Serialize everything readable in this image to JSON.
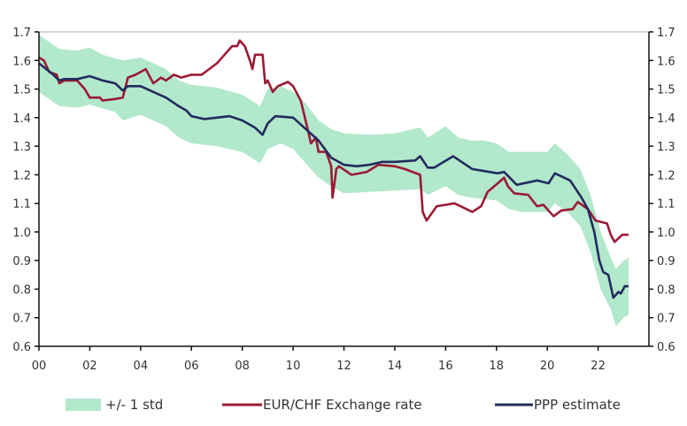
{
  "chart_data": {
    "type": "line",
    "title": "",
    "xlabel": "",
    "ylabel": "",
    "ylim": [
      0.6,
      1.7
    ],
    "xlim": [
      2000,
      2024
    ],
    "grid": false,
    "legend_position": "bottom",
    "y_ticks": [
      "0.6",
      "0.7",
      "0.8",
      "0.9",
      "1.0",
      "1.1",
      "1.2",
      "1.3",
      "1.4",
      "1.5",
      "1.6",
      "1.7"
    ],
    "x_ticks": [
      "00",
      "02",
      "04",
      "06",
      "08",
      "10",
      "12",
      "14",
      "16",
      "18",
      "20",
      "22"
    ],
    "colors": {
      "band": "#b2e8cb",
      "exchange": "#9b1b35",
      "ppp": "#232b5e"
    },
    "band": {
      "name": "+/- 1 std",
      "upper": [
        [
          2000,
          1.69
        ],
        [
          2000.8,
          1.64
        ],
        [
          2001.5,
          1.635
        ],
        [
          2002,
          1.645
        ],
        [
          2002.5,
          1.62
        ],
        [
          2003.3,
          1.6
        ],
        [
          2004,
          1.61
        ],
        [
          2004.5,
          1.59
        ],
        [
          2005,
          1.57
        ],
        [
          2005.5,
          1.53
        ],
        [
          2006,
          1.515
        ],
        [
          2007,
          1.505
        ],
        [
          2008,
          1.48
        ],
        [
          2008.7,
          1.44
        ],
        [
          2009,
          1.5
        ],
        [
          2009.5,
          1.51
        ],
        [
          2010,
          1.49
        ],
        [
          2010.5,
          1.45
        ],
        [
          2011,
          1.39
        ],
        [
          2011.5,
          1.36
        ],
        [
          2012,
          1.345
        ],
        [
          2013,
          1.34
        ],
        [
          2014,
          1.345
        ],
        [
          2015,
          1.365
        ],
        [
          2015.3,
          1.33
        ],
        [
          2016,
          1.37
        ],
        [
          2016.5,
          1.33
        ],
        [
          2017,
          1.32
        ],
        [
          2017.5,
          1.32
        ],
        [
          2018,
          1.31
        ],
        [
          2018.5,
          1.28
        ],
        [
          2019,
          1.28
        ],
        [
          2020,
          1.28
        ],
        [
          2020.3,
          1.31
        ],
        [
          2020.8,
          1.27
        ],
        [
          2021.3,
          1.22
        ],
        [
          2021.7,
          1.13
        ],
        [
          2022.1,
          1.0
        ],
        [
          2022.5,
          0.91
        ],
        [
          2022.7,
          0.87
        ],
        [
          2023.0,
          0.9
        ],
        [
          2023.2,
          0.91
        ]
      ],
      "lower": [
        [
          2000,
          1.49
        ],
        [
          2000.8,
          1.44
        ],
        [
          2001.5,
          1.435
        ],
        [
          2002,
          1.445
        ],
        [
          2003,
          1.42
        ],
        [
          2003.3,
          1.39
        ],
        [
          2004,
          1.41
        ],
        [
          2004.5,
          1.39
        ],
        [
          2005,
          1.37
        ],
        [
          2005.5,
          1.33
        ],
        [
          2006,
          1.31
        ],
        [
          2007,
          1.3
        ],
        [
          2008,
          1.28
        ],
        [
          2008.7,
          1.24
        ],
        [
          2009,
          1.29
        ],
        [
          2009.5,
          1.31
        ],
        [
          2010,
          1.29
        ],
        [
          2010.5,
          1.24
        ],
        [
          2011,
          1.19
        ],
        [
          2011.5,
          1.16
        ],
        [
          2012,
          1.135
        ],
        [
          2013,
          1.14
        ],
        [
          2014,
          1.145
        ],
        [
          2015,
          1.15
        ],
        [
          2015.3,
          1.13
        ],
        [
          2016,
          1.16
        ],
        [
          2016.5,
          1.13
        ],
        [
          2017,
          1.12
        ],
        [
          2018,
          1.11
        ],
        [
          2018.5,
          1.08
        ],
        [
          2019,
          1.07
        ],
        [
          2020,
          1.07
        ],
        [
          2020.3,
          1.1
        ],
        [
          2020.8,
          1.07
        ],
        [
          2021.3,
          1.02
        ],
        [
          2021.7,
          0.93
        ],
        [
          2022.1,
          0.8
        ],
        [
          2022.5,
          0.73
        ],
        [
          2022.7,
          0.67
        ],
        [
          2023.0,
          0.7
        ],
        [
          2023.2,
          0.71
        ]
      ]
    },
    "series": [
      {
        "name": "EUR/CHF Exchange rate",
        "points": [
          [
            2000,
            1.61
          ],
          [
            2000.2,
            1.6
          ],
          [
            2000.4,
            1.56
          ],
          [
            2000.7,
            1.55
          ],
          [
            2000.8,
            1.52
          ],
          [
            2001,
            1.53
          ],
          [
            2001.5,
            1.53
          ],
          [
            2001.8,
            1.5
          ],
          [
            2002,
            1.47
          ],
          [
            2002.4,
            1.47
          ],
          [
            2002.5,
            1.46
          ],
          [
            2003,
            1.465
          ],
          [
            2003.3,
            1.47
          ],
          [
            2003.5,
            1.54
          ],
          [
            2003.8,
            1.55
          ],
          [
            2004,
            1.56
          ],
          [
            2004.2,
            1.57
          ],
          [
            2004.5,
            1.52
          ],
          [
            2004.8,
            1.54
          ],
          [
            2005,
            1.53
          ],
          [
            2005.3,
            1.55
          ],
          [
            2005.6,
            1.54
          ],
          [
            2006,
            1.55
          ],
          [
            2006.4,
            1.55
          ],
          [
            2006.7,
            1.57
          ],
          [
            2007,
            1.59
          ],
          [
            2007.3,
            1.62
          ],
          [
            2007.6,
            1.65
          ],
          [
            2007.8,
            1.65
          ],
          [
            2007.9,
            1.67
          ],
          [
            2008.1,
            1.65
          ],
          [
            2008.3,
            1.6
          ],
          [
            2008.4,
            1.57
          ],
          [
            2008.5,
            1.62
          ],
          [
            2008.8,
            1.62
          ],
          [
            2008.9,
            1.52
          ],
          [
            2009,
            1.53
          ],
          [
            2009.2,
            1.49
          ],
          [
            2009.4,
            1.51
          ],
          [
            2009.8,
            1.525
          ],
          [
            2010,
            1.51
          ],
          [
            2010.3,
            1.46
          ],
          [
            2010.6,
            1.35
          ],
          [
            2010.7,
            1.31
          ],
          [
            2010.9,
            1.33
          ],
          [
            2011,
            1.28
          ],
          [
            2011.3,
            1.28
          ],
          [
            2011.5,
            1.23
          ],
          [
            2011.55,
            1.12
          ],
          [
            2011.7,
            1.22
          ],
          [
            2011.8,
            1.23
          ],
          [
            2012.3,
            1.2
          ],
          [
            2012.9,
            1.21
          ],
          [
            2013.35,
            1.235
          ],
          [
            2014,
            1.23
          ],
          [
            2014.4,
            1.22
          ],
          [
            2015.0,
            1.2
          ],
          [
            2015.1,
            1.07
          ],
          [
            2015.25,
            1.04
          ],
          [
            2015.65,
            1.09
          ],
          [
            2016.35,
            1.1
          ],
          [
            2017.05,
            1.07
          ],
          [
            2017.4,
            1.09
          ],
          [
            2017.65,
            1.14
          ],
          [
            2018.05,
            1.17
          ],
          [
            2018.3,
            1.19
          ],
          [
            2018.45,
            1.16
          ],
          [
            2018.7,
            1.135
          ],
          [
            2019.25,
            1.13
          ],
          [
            2019.6,
            1.09
          ],
          [
            2019.85,
            1.095
          ],
          [
            2020.25,
            1.055
          ],
          [
            2020.55,
            1.075
          ],
          [
            2021.0,
            1.08
          ],
          [
            2021.2,
            1.105
          ],
          [
            2021.6,
            1.08
          ],
          [
            2021.9,
            1.04
          ],
          [
            2022.35,
            1.03
          ],
          [
            2022.5,
            0.99
          ],
          [
            2022.65,
            0.965
          ],
          [
            2022.95,
            0.99
          ],
          [
            2023.2,
            0.99
          ]
        ]
      },
      {
        "name": "PPP estimate",
        "points": [
          [
            2000,
            1.59
          ],
          [
            2000.5,
            1.555
          ],
          [
            2000.8,
            1.53
          ],
          [
            2001,
            1.535
          ],
          [
            2001.5,
            1.535
          ],
          [
            2002,
            1.545
          ],
          [
            2002.5,
            1.53
          ],
          [
            2003,
            1.52
          ],
          [
            2003.3,
            1.495
          ],
          [
            2003.5,
            1.51
          ],
          [
            2004,
            1.51
          ],
          [
            2004.5,
            1.49
          ],
          [
            2005,
            1.47
          ],
          [
            2005.5,
            1.44
          ],
          [
            2005.8,
            1.425
          ],
          [
            2006,
            1.405
          ],
          [
            2006.5,
            1.395
          ],
          [
            2007,
            1.4
          ],
          [
            2007.5,
            1.405
          ],
          [
            2008,
            1.39
          ],
          [
            2008.5,
            1.365
          ],
          [
            2008.8,
            1.34
          ],
          [
            2009,
            1.38
          ],
          [
            2009.3,
            1.405
          ],
          [
            2010,
            1.4
          ],
          [
            2010.5,
            1.36
          ],
          [
            2011,
            1.32
          ],
          [
            2011.5,
            1.26
          ],
          [
            2012,
            1.235
          ],
          [
            2012.5,
            1.23
          ],
          [
            2013,
            1.235
          ],
          [
            2013.5,
            1.245
          ],
          [
            2014,
            1.245
          ],
          [
            2014.8,
            1.25
          ],
          [
            2015.0,
            1.265
          ],
          [
            2015.3,
            1.225
          ],
          [
            2015.55,
            1.225
          ],
          [
            2016.3,
            1.265
          ],
          [
            2017.05,
            1.22
          ],
          [
            2018.05,
            1.205
          ],
          [
            2018.3,
            1.21
          ],
          [
            2018.8,
            1.165
          ],
          [
            2019.6,
            1.18
          ],
          [
            2020.05,
            1.17
          ],
          [
            2020.3,
            1.205
          ],
          [
            2020.9,
            1.18
          ],
          [
            2021.35,
            1.12
          ],
          [
            2021.6,
            1.08
          ],
          [
            2021.85,
            1.0
          ],
          [
            2022.05,
            0.9
          ],
          [
            2022.2,
            0.86
          ],
          [
            2022.4,
            0.85
          ],
          [
            2022.6,
            0.77
          ],
          [
            2022.8,
            0.79
          ],
          [
            2022.9,
            0.785
          ],
          [
            2023.05,
            0.81
          ],
          [
            2023.2,
            0.81
          ]
        ]
      }
    ],
    "legend": [
      "+/- 1 std",
      "EUR/CHF Exchange rate",
      "PPP estimate"
    ]
  }
}
